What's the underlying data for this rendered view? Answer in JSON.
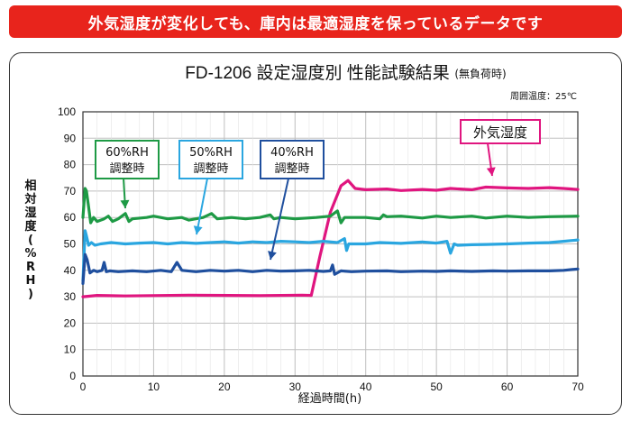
{
  "banner": {
    "text": "外気湿度が変化しても、庫内は最適湿度を保っているデータです"
  },
  "colors": {
    "banner": "#e8241c",
    "grid": "#bfbfbf",
    "axis": "#333333"
  },
  "chart_data": {
    "type": "line",
    "title": "FD-1206 設定湿度別 性能試験結果",
    "title_note": "(無負荷時)",
    "subtitle": "周囲温度：25℃",
    "xlabel": "経過時間(h)",
    "ylabel": "相対湿度(%RH)",
    "xlim": [
      0,
      70
    ],
    "ylim": [
      0,
      100
    ],
    "xticks": [
      0,
      10,
      20,
      30,
      40,
      50,
      60,
      70
    ],
    "yticks": [
      0,
      10,
      20,
      30,
      40,
      50,
      60,
      70,
      80,
      90,
      100
    ],
    "grid": true,
    "series": [
      {
        "name": "外気湿度",
        "color": "#e0157f",
        "x": [
          0,
          2,
          6,
          15,
          25,
          31,
          32.3,
          33.5,
          35,
          36.5,
          37.5,
          38.5,
          40,
          43,
          45,
          48,
          50,
          52,
          55,
          57,
          60,
          63,
          66,
          68,
          70
        ],
        "y": [
          30,
          30.5,
          30.3,
          30.6,
          30.4,
          30.6,
          30.5,
          45,
          62,
          72,
          74,
          71,
          70.5,
          70.8,
          70.2,
          70.6,
          70.3,
          71,
          70.5,
          71.5,
          71.2,
          71,
          71.3,
          71,
          70.6
        ]
      },
      {
        "name": "60%RH 調整時",
        "color": "#1e9a45",
        "x": [
          0,
          0.3,
          0.5,
          0.8,
          1.1,
          1.5,
          2,
          3,
          3.6,
          4.2,
          5,
          6,
          6.5,
          7,
          9,
          10,
          12,
          14,
          15,
          17,
          18.2,
          19,
          21,
          23,
          25,
          26.5,
          27,
          28,
          30,
          33,
          35,
          36,
          36.5,
          37,
          40,
          42,
          42.5,
          43,
          45,
          48,
          50,
          52,
          55,
          57,
          60,
          63,
          66,
          70
        ],
        "y": [
          60,
          71,
          70,
          64,
          58,
          60,
          58.5,
          59.5,
          60.5,
          58.5,
          59.5,
          61.5,
          58.5,
          59.5,
          60,
          60.5,
          59.5,
          60,
          59,
          60,
          61.5,
          59.5,
          60,
          59.5,
          60,
          61,
          59.5,
          60,
          59.5,
          60,
          60.5,
          62.5,
          58,
          60,
          60,
          59.5,
          61,
          60.3,
          60.5,
          59.8,
          60.5,
          60,
          60.5,
          59.8,
          60.5,
          60,
          60.3,
          60.5
        ]
      },
      {
        "name": "50%RH 調整時",
        "color": "#2aa6e0",
        "x": [
          0,
          0.3,
          0.5,
          0.8,
          1.2,
          1.7,
          2.5,
          4,
          6,
          8,
          10,
          12,
          14,
          16,
          18,
          20,
          22,
          24,
          26,
          28,
          30,
          32,
          34,
          36,
          37,
          37.3,
          37.6,
          40,
          42,
          45,
          48,
          50,
          51.5,
          52,
          52.5,
          53,
          55,
          57,
          60,
          63,
          66,
          68,
          70
        ],
        "y": [
          36,
          55,
          53,
          49.5,
          50.5,
          49.5,
          50,
          50.5,
          50,
          50.3,
          50.5,
          50,
          50.5,
          50.2,
          50.5,
          50.8,
          50.3,
          50.8,
          50.5,
          51,
          50.8,
          50.5,
          51,
          50.5,
          52,
          47.5,
          50,
          50,
          50.5,
          50.2,
          50.7,
          50.3,
          51,
          46.5,
          50,
          49.5,
          49.7,
          49.8,
          50,
          50.3,
          50.5,
          51,
          51.5
        ]
      },
      {
        "name": "40%RH 調整時",
        "color": "#1f4f9e",
        "x": [
          0,
          0.3,
          0.6,
          1,
          1.5,
          2,
          2.7,
          3,
          3.3,
          3.8,
          5,
          7,
          9,
          11,
          12.5,
          13.3,
          14,
          16,
          18,
          20,
          22,
          24,
          26,
          28,
          30,
          32,
          34,
          35,
          35.3,
          35.6,
          36.5,
          38,
          40,
          43,
          45,
          48,
          50,
          52,
          55,
          58,
          60,
          63,
          66,
          68,
          70
        ],
        "y": [
          35,
          46,
          44,
          39,
          40,
          39.5,
          40,
          43,
          39.5,
          39.8,
          39.5,
          39.8,
          39.5,
          40,
          39.5,
          43,
          40,
          39.5,
          40,
          39.7,
          40,
          39.5,
          40,
          39.7,
          39.8,
          40,
          39.6,
          39.8,
          42,
          38.5,
          39.8,
          39.5,
          39.7,
          39.8,
          39.5,
          39.7,
          39.6,
          39.8,
          39.6,
          39.8,
          39.7,
          39.8,
          39.8,
          40,
          40.5
        ]
      }
    ],
    "callouts": [
      {
        "series": 0,
        "lines": [
          "外気湿度"
        ]
      },
      {
        "series": 1,
        "lines": [
          "60%RH",
          "調整時"
        ]
      },
      {
        "series": 2,
        "lines": [
          "50%RH",
          "調整時"
        ]
      },
      {
        "series": 3,
        "lines": [
          "40%RH",
          "調整時"
        ]
      }
    ]
  }
}
